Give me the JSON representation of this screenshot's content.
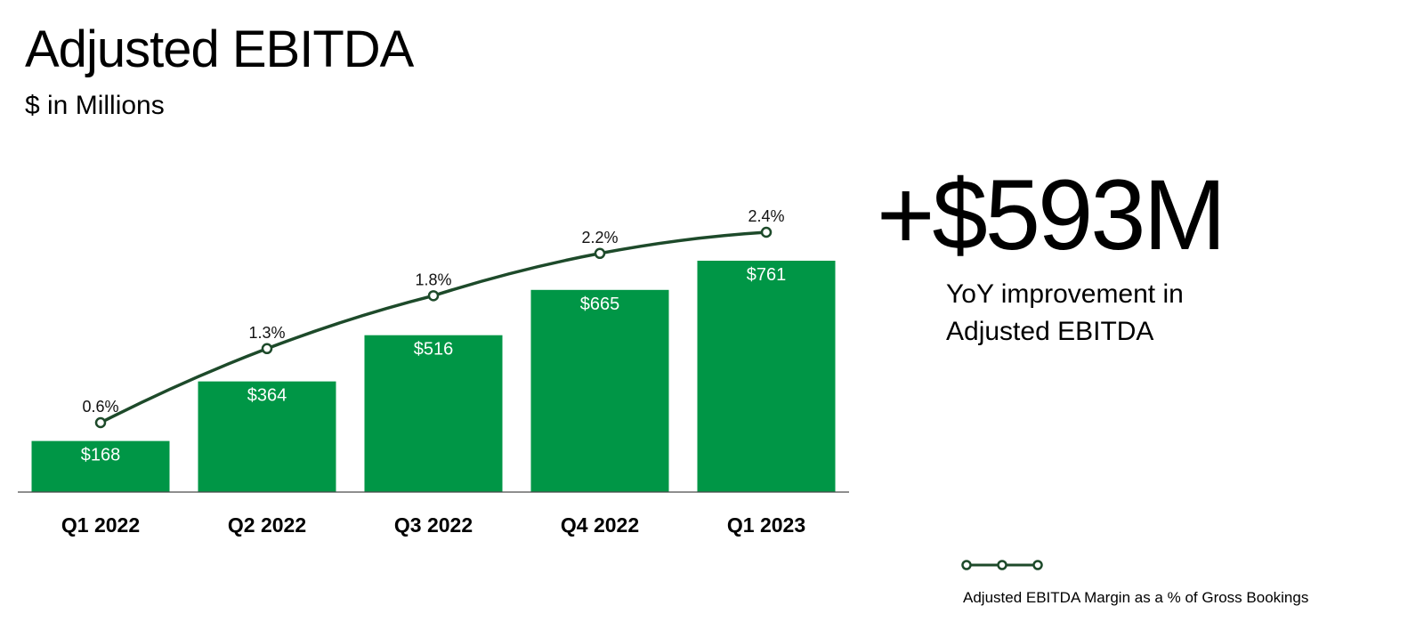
{
  "title": "Adjusted EBITDA",
  "subtitle": "$ in Millions",
  "highlight": {
    "value": "+$593M",
    "caption_line1": "YoY improvement in",
    "caption_line2": "Adjusted EBITDA"
  },
  "colors": {
    "bar": "#009646",
    "line": "#1d4a2a",
    "bar_label": "#ffffff",
    "axis": "#4a4a4a"
  },
  "chart_data": {
    "type": "bar",
    "title": "Adjusted EBITDA",
    "subtitle": "$ in Millions",
    "categories": [
      "Q1 2022",
      "Q2 2022",
      "Q3 2022",
      "Q4 2022",
      "Q1 2023"
    ],
    "series": [
      {
        "values": [
          168,
          364,
          516,
          665,
          761
        ],
        "labels": [
          "$168",
          "$364",
          "$516",
          "$665",
          "$761"
        ]
      },
      {
        "name": "Adjusted EBITDA Margin as a % of Gross Bookings",
        "type": "line",
        "values": [
          0.6,
          1.3,
          1.8,
          2.2,
          2.4
        ],
        "labels": [
          "0.6%",
          "1.3%",
          "1.8%",
          "2.2%",
          "2.4%"
        ]
      }
    ],
    "legend": {
      "position": "bottom-right",
      "entries": [
        "Adjusted EBITDA Margin as a % of Gross Bookings"
      ]
    },
    "grid": false
  }
}
